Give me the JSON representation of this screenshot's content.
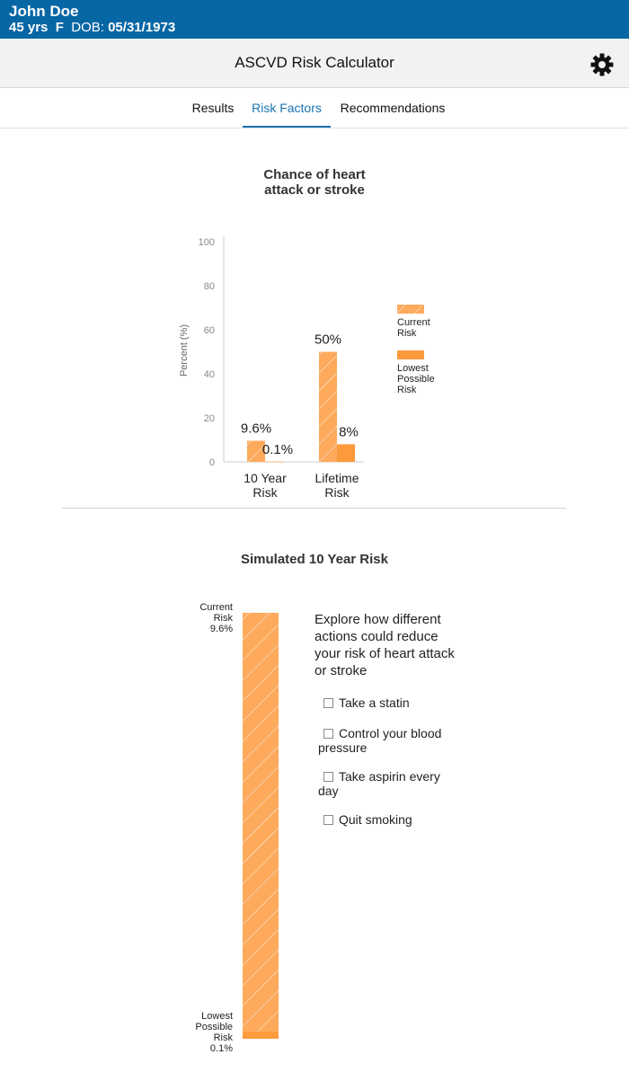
{
  "patient": {
    "name": "John Doe",
    "age": "45 yrs",
    "sex": "F",
    "dob_label": "DOB:",
    "dob": "05/31/1973"
  },
  "header": {
    "title": "ASCVD Risk Calculator",
    "settings_icon": "gear-icon"
  },
  "tabs": [
    {
      "label": "Results",
      "active": false
    },
    {
      "label": "Risk Factors",
      "active": true
    },
    {
      "label": "Recommendations",
      "active": false
    }
  ],
  "chart1": {
    "title_line1": "Chance of heart",
    "title_line2": "attack or stroke"
  },
  "chart2": {
    "title": "Simulated 10 Year Risk"
  },
  "chart_data": [
    {
      "type": "bar",
      "title": "Chance of heart attack or stroke",
      "ylabel": "Percent (%)",
      "ylim": [
        0,
        100
      ],
      "yticks": [
        "100",
        "80",
        "60",
        "40",
        "20",
        "0"
      ],
      "categories": [
        [
          "10 Year",
          "Risk"
        ],
        [
          "Lifetime",
          "Risk"
        ]
      ],
      "series": [
        {
          "name": [
            "Current",
            "Risk"
          ],
          "values": [
            9.6,
            50
          ],
          "labels": [
            "9.6%",
            "50%"
          ],
          "color": "#fdaa5c",
          "pattern": "hatched"
        },
        {
          "name": [
            "Lowest",
            "Possible",
            "Risk"
          ],
          "values": [
            0.1,
            8
          ],
          "labels": [
            "0.1%",
            "8%"
          ],
          "color": "#fd9a3c",
          "pattern": "solid"
        }
      ],
      "legend": "right",
      "grid": false
    },
    {
      "type": "bar",
      "title": "Simulated 10 Year Risk",
      "current": {
        "value": 9.6,
        "label_lines": [
          "Current",
          "Risk"
        ],
        "value_label": "9.6%",
        "color": "#fdaa5c"
      },
      "lowest": {
        "value": 0.1,
        "label_lines": [
          "Lowest",
          "Possible",
          "Risk"
        ],
        "value_label": "0.1%",
        "color": "#fd9a3c"
      }
    }
  ],
  "simulation": {
    "explore_text": "Explore how different actions could reduce your risk of heart attack or stroke",
    "options": [
      {
        "label": "Take a statin",
        "checked": false
      },
      {
        "label": "Control your blood pressure",
        "checked": false
      },
      {
        "label": "Take aspirin every day",
        "checked": false
      },
      {
        "label": "Quit smoking",
        "checked": false
      }
    ]
  }
}
